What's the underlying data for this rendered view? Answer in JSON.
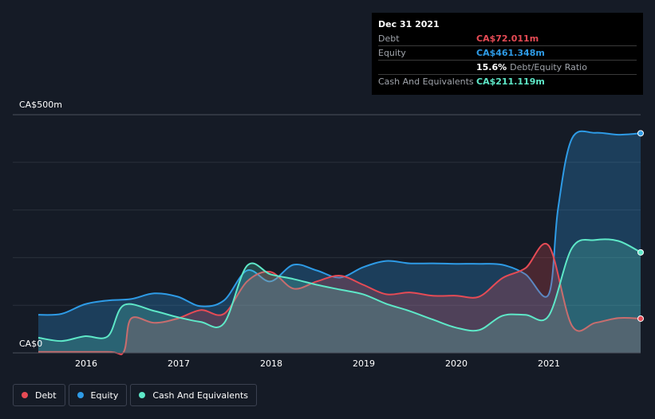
{
  "tooltip": {
    "date": "Dec 31 2021",
    "rows": [
      {
        "label": "Debt",
        "value": "CA$72.011m",
        "color": "#e64b55"
      },
      {
        "label": "Equity",
        "value": "CA$461.348m",
        "color": "#2e9be6"
      },
      {
        "label": "",
        "value": "15.6%",
        "suffix": "Debt/Equity Ratio",
        "color": "#ffffff"
      },
      {
        "label": "Cash And Equivalents",
        "value": "CA$211.119m",
        "color": "#5ee8c8"
      }
    ]
  },
  "legend": [
    {
      "label": "Debt",
      "color": "#e64b55"
    },
    {
      "label": "Equity",
      "color": "#2e9be6"
    },
    {
      "label": "Cash And Equivalents",
      "color": "#5ee8c8"
    }
  ],
  "chart_data": {
    "type": "area",
    "x_axis_ticks": [
      "2016",
      "2017",
      "2018",
      "2019",
      "2020",
      "2021"
    ],
    "y_axis_labels": [
      "CA$500m",
      "CA$0"
    ],
    "ylim": [
      0,
      500
    ],
    "xlim": [
      2015.5,
      2021.99
    ],
    "grid": true,
    "legend_position": "bottom-left",
    "series": [
      {
        "name": "Debt",
        "color": "#e64b55",
        "x": [
          2015.5,
          2016.25,
          2016.42,
          2016.5,
          2016.75,
          2017.0,
          2017.25,
          2017.5,
          2017.75,
          2018.0,
          2018.25,
          2018.5,
          2018.75,
          2019.0,
          2019.25,
          2019.5,
          2019.75,
          2020.0,
          2020.25,
          2020.5,
          2020.75,
          2021.0,
          2021.25,
          2021.5,
          2021.75,
          2021.99
        ],
        "values": [
          2,
          2,
          2,
          72,
          63,
          72,
          90,
          82,
          150,
          170,
          135,
          150,
          162,
          143,
          123,
          127,
          120,
          120,
          118,
          157,
          178,
          225,
          57,
          63,
          73,
          72
        ]
      },
      {
        "name": "Equity",
        "color": "#2e9be6",
        "x": [
          2015.5,
          2015.75,
          2016.0,
          2016.25,
          2016.5,
          2016.75,
          2017.0,
          2017.25,
          2017.5,
          2017.75,
          2018.0,
          2018.25,
          2018.5,
          2018.75,
          2019.0,
          2019.25,
          2019.5,
          2019.75,
          2020.0,
          2020.25,
          2020.5,
          2020.75,
          2021.0,
          2021.1,
          2021.25,
          2021.5,
          2021.75,
          2021.99
        ],
        "values": [
          80,
          82,
          102,
          110,
          113,
          125,
          118,
          98,
          110,
          173,
          150,
          185,
          173,
          158,
          180,
          193,
          188,
          188,
          187,
          187,
          185,
          165,
          123,
          303,
          450,
          462,
          458,
          461
        ]
      },
      {
        "name": "Cash And Equivalents",
        "color": "#5ee8c8",
        "x": [
          2015.5,
          2015.75,
          2016.0,
          2016.25,
          2016.42,
          2016.75,
          2017.0,
          2017.25,
          2017.5,
          2017.75,
          2018.0,
          2018.25,
          2018.5,
          2018.75,
          2019.0,
          2019.25,
          2019.5,
          2019.75,
          2020.0,
          2020.25,
          2020.5,
          2020.75,
          2021.0,
          2021.25,
          2021.5,
          2021.75,
          2021.99
        ],
        "values": [
          32,
          25,
          35,
          35,
          100,
          88,
          75,
          65,
          62,
          183,
          165,
          155,
          143,
          133,
          123,
          103,
          88,
          70,
          53,
          48,
          78,
          80,
          78,
          220,
          237,
          235,
          211
        ]
      }
    ]
  }
}
